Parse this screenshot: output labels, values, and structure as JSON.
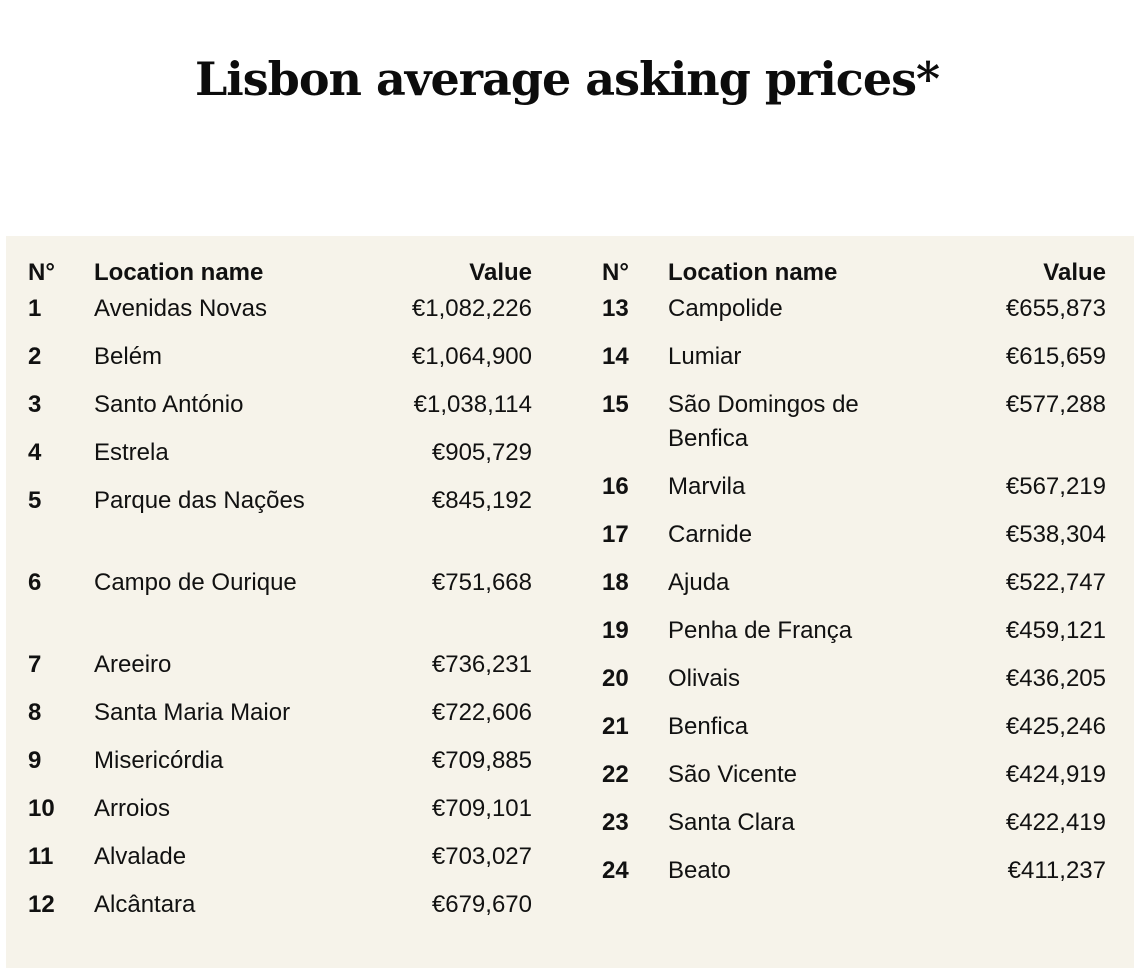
{
  "title": "Lisbon average asking prices*",
  "chart_data": {
    "type": "table",
    "title": "Lisbon average asking prices*",
    "columns": [
      "N°",
      "Location name",
      "Value"
    ],
    "rows": [
      {
        "no": "1",
        "location": "Avenidas Novas",
        "value": "€1,082,226"
      },
      {
        "no": "2",
        "location": "Belém",
        "value": "€1,064,900"
      },
      {
        "no": "3",
        "location": "Santo António",
        "value": "€1,038,114"
      },
      {
        "no": "4",
        "location": "Estrela",
        "value": "€905,729"
      },
      {
        "no": "5",
        "location": "Parque das Nações",
        "value": "€845,192"
      },
      {
        "no": "6",
        "location": "Campo de Ourique",
        "value": "€751,668"
      },
      {
        "no": "7",
        "location": "Areeiro",
        "value": "€736,231"
      },
      {
        "no": "8",
        "location": "Santa Maria Maior",
        "value": "€722,606"
      },
      {
        "no": "9",
        "location": "Misericórdia",
        "value": "€709,885"
      },
      {
        "no": "10",
        "location": "Arroios",
        "value": "€709,101"
      },
      {
        "no": "11",
        "location": "Alvalade",
        "value": "€703,027"
      },
      {
        "no": "12",
        "location": "Alcântara",
        "value": "€679,670"
      },
      {
        "no": "13",
        "location": "Campolide",
        "value": "€655,873"
      },
      {
        "no": "14",
        "location": "Lumiar",
        "value": "€615,659"
      },
      {
        "no": "15",
        "location": "São Domingos de Benfica",
        "value": "€577,288"
      },
      {
        "no": "16",
        "location": "Marvila",
        "value": "€567,219"
      },
      {
        "no": "17",
        "location": "Carnide",
        "value": "€538,304"
      },
      {
        "no": "18",
        "location": "Ajuda",
        "value": "€522,747"
      },
      {
        "no": "19",
        "location": "Penha de França",
        "value": "€459,121"
      },
      {
        "no": "20",
        "location": "Olivais",
        "value": "€436,205"
      },
      {
        "no": "21",
        "location": "Benfica",
        "value": "€425,246"
      },
      {
        "no": "22",
        "location": "São Vicente",
        "value": "€424,919"
      },
      {
        "no": "23",
        "location": "Santa Clara",
        "value": "€422,419"
      },
      {
        "no": "24",
        "location": "Beato",
        "value": "€411,237"
      }
    ]
  }
}
